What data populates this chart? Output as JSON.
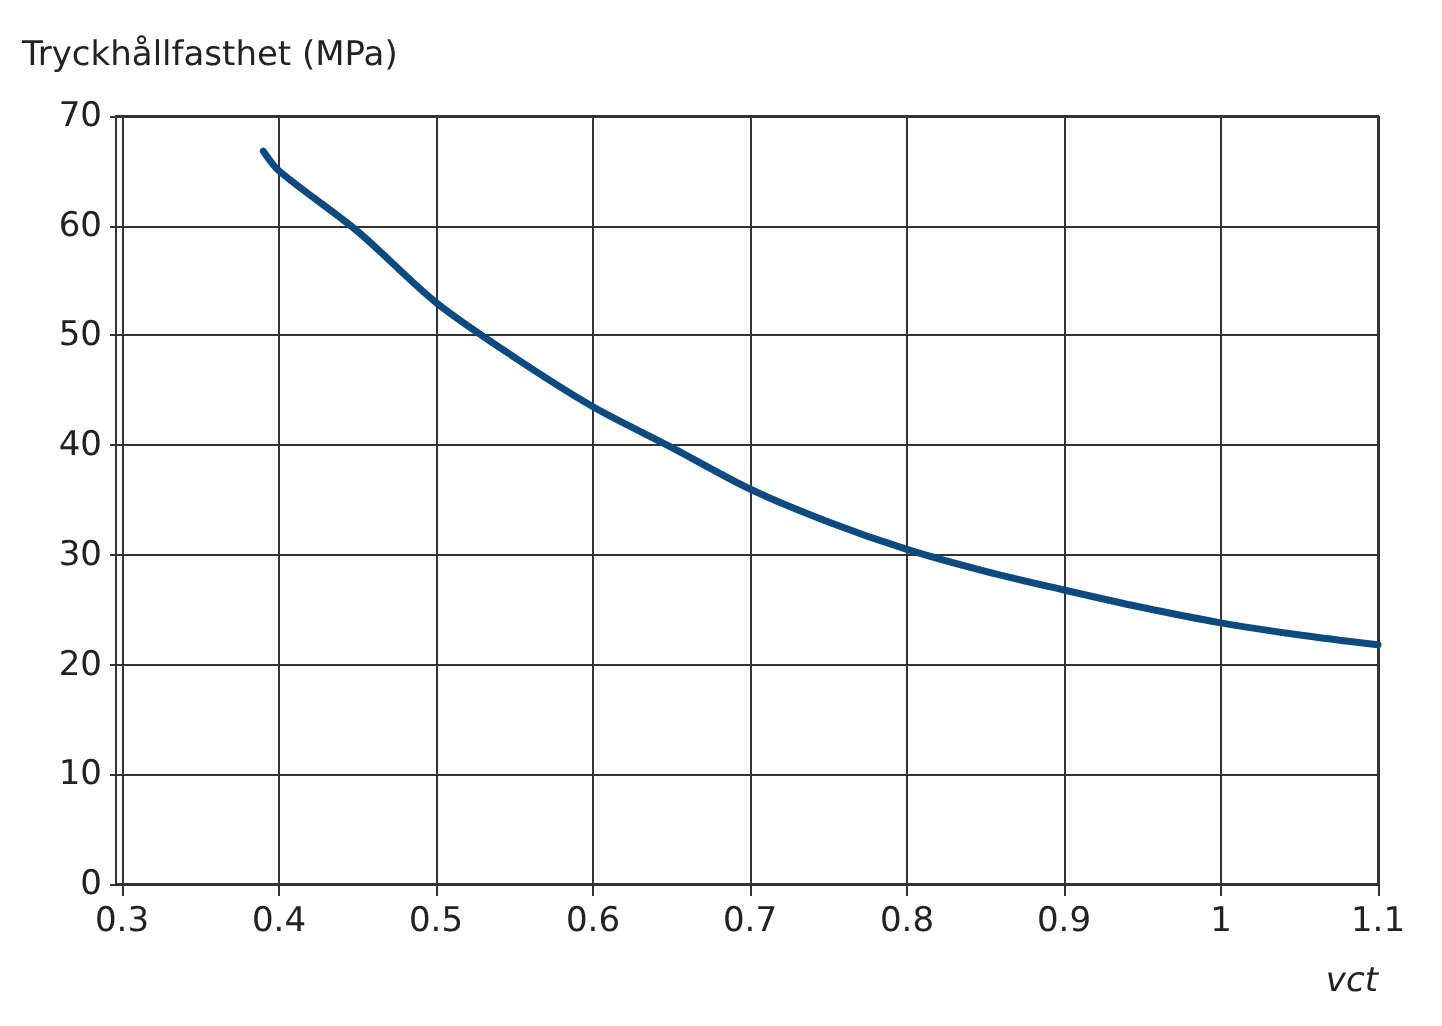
{
  "chart_data": {
    "type": "line",
    "xlabel": "vct",
    "ylabel": "Tryckhållfasthet (MPa)",
    "x": [
      0.39,
      0.4,
      0.45,
      0.5,
      0.55,
      0.6,
      0.65,
      0.7,
      0.75,
      0.8,
      0.85,
      0.9,
      0.95,
      1.0,
      1.05,
      1.1
    ],
    "series": [
      {
        "color": "#0d4a80",
        "values": [
          66.8,
          65,
          59.5,
          53,
          48,
          43.5,
          39.8,
          36,
          33,
          30.5,
          28.5,
          26.8,
          25.2,
          23.8,
          22.7,
          21.8
        ]
      }
    ],
    "xlim": [
      0.3,
      1.1
    ],
    "xticks": [
      0.3,
      0.4,
      0.5,
      0.6,
      0.7,
      0.8,
      0.9,
      1,
      1.1
    ],
    "ylim": [
      0,
      70
    ],
    "yticks": [
      0,
      10,
      20,
      30,
      40,
      50,
      60,
      70
    ],
    "grid": true,
    "marker": "none",
    "line_style": "solid"
  }
}
